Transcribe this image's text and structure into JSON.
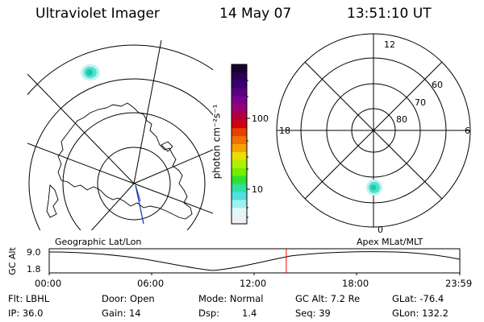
{
  "header": {
    "instrument": "Ultraviolet Imager",
    "date": "14 May 07",
    "time": "13:51:10 UT"
  },
  "colorbar": {
    "label": "photon cm⁻²s⁻¹",
    "ticks": [
      "100",
      "10"
    ],
    "colors": [
      "#1a0030",
      "#2a0050",
      "#3a0070",
      "#5a0080",
      "#7a0090",
      "#9a0070",
      "#b00040",
      "#d00010",
      "#e84000",
      "#f07000",
      "#f8a000",
      "#e8e000",
      "#b0f000",
      "#70f000",
      "#30e030",
      "#30e0a0",
      "#50e0e0",
      "#a0f0f0",
      "#e0f8f8",
      "#f0f0f0"
    ]
  },
  "geo_map": {
    "title": "Geographic Lat/Lon",
    "blob": {
      "color": "#40e0d0"
    }
  },
  "polar": {
    "title": "Apex MLat/MLT",
    "mlt_labels": {
      "top": "12",
      "left": "18",
      "right": "6",
      "bottom": "0"
    },
    "lat_labels": [
      "60",
      "70",
      "80"
    ]
  },
  "altitude": {
    "axis_label": "GC Alt",
    "y_ticks": [
      "9.0",
      "1.8"
    ],
    "x_ticks": [
      "00:00",
      "06:00",
      "12:00",
      "18:00",
      "23:59"
    ],
    "marker_hour": 13.86,
    "marker_color": "#ff0000"
  },
  "status": {
    "flt": "Flt: LBHL",
    "door": "Door: Open",
    "mode": "Mode: Normal",
    "gcalt": "GC Alt: 7.2 Re",
    "glat": "GLat: -76.4",
    "ip": "IP: 36.0",
    "gain": "Gain: 14",
    "dsp_label": "Dsp:",
    "dsp_value": "1.4",
    "seq": "Seq: 39",
    "glon": "GLon: 132.2"
  }
}
